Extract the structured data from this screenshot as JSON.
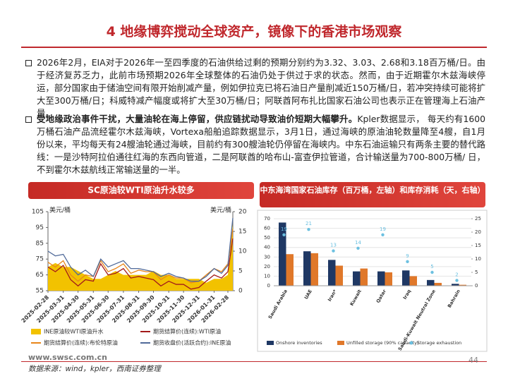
{
  "header": {
    "title": "4 地缘博弈搅动全球资产，镜像下的香港市场观察"
  },
  "bullets": [
    {
      "text": "2026年2月，EIA对于2026年一至四季度的石油供给过剩的预期分别约为3.32、3.03、2.68和3.18百万桶/日。由于经济复苏乏力，此前市场预期2026年全球整体的石油仍处于供过于求的状态。然而，由于近期霍尔木兹海峡停运，部分国家由于储油空间有限开始削减产量，例如伊拉克已将石油日产量削减近150万桶/日，若冲突持续可能将扩大至300万桶/日；科威特减产幅度或将扩大至30万桶/日；阿联酋阿布扎比国家石油公司也表示正在管理海上石油产量。"
    },
    {
      "bold": "受地缘政治事件干扰，大量油轮在海上停留，供应链扰动导致油价短期大幅攀升。",
      "text": "Kpler数据显示，  每天约有1600万桶石油产品流经霍尔木兹海峡，Vortexa船舶追踪数据显示，3月1日，通过海峡的原油油轮数量降至4艘，自1月份以来，平均每天有24艘油轮通过海峡，目前约有300艘油轮仍停留在海峡内。中东石油运输只有两条主要的替代路线：一是沙特阿拉伯通往红海的东西向管道，二是阿联酋的哈布山-富查伊拉管道，合计输送量为700-800万桶/ 日，不到霍尔木兹航线正常输送量的一半。"
    }
  ],
  "chart_data": [
    {
      "type": "line",
      "title": "SC原油较WTI原油升水较多",
      "y_label": "美元/桶",
      "y2_label": "美元/桶",
      "x": [
        "2025-02-28",
        "2025-03-15",
        "2025-03-31",
        "2025-04-15",
        "2025-04-30",
        "2025-05-15",
        "2025-05-31",
        "2025-06-15",
        "2025-06-30",
        "2025-07-15",
        "2025-07-31",
        "2025-08-15",
        "2025-08-31",
        "2025-09-15",
        "2025-09-30",
        "2025-10-15",
        "2025-10-31",
        "2025-11-15",
        "2025-11-30",
        "2025-12-15",
        "2025-12-31",
        "2026-01-15",
        "2026-01-31",
        "2026-02-15",
        "2026-02-28",
        "2026-03-10"
      ],
      "xlim": [
        "2025-02-28",
        "2026-03-10"
      ],
      "xticks": [
        "2025-02-28",
        "2025-03-31",
        "2025-04-30",
        "2025-05-31",
        "2025-06-30",
        "2025-07-31",
        "2025-08-31",
        "2025-09-30",
        "2025-10-31",
        "2025-11-30",
        "2025-12-31",
        "2026-01-31",
        "2026-02-28"
      ],
      "ylim": [
        55,
        105
      ],
      "yticks": [
        55,
        65,
        75,
        85,
        95,
        105
      ],
      "y2lim": [
        0,
        20
      ],
      "y2ticks": [
        0,
        5,
        10,
        15,
        20
      ],
      "series": [
        {
          "name": "INE原油较WTI原油升水",
          "color": "#f2c200",
          "kind": "area",
          "axis": "y2",
          "values": [
            6,
            7,
            6,
            6,
            5,
            4,
            3,
            3,
            4,
            5,
            4,
            4,
            4,
            4,
            5,
            4,
            4,
            3,
            3,
            3,
            3,
            2,
            3,
            3,
            4,
            17
          ]
        },
        {
          "name": "期货结算价(连续):WTI原油",
          "color": "#a31a1a",
          "kind": "line",
          "values": [
            70,
            67,
            71,
            62,
            58,
            62,
            61,
            72,
            65,
            66,
            69,
            63,
            64,
            63,
            62,
            58,
            61,
            59,
            59,
            56,
            57,
            61,
            65,
            63,
            67,
            88
          ]
        },
        {
          "name": "期货结算价(连续):布伦特原油",
          "color": "#e8861a",
          "kind": "line",
          "values": [
            73,
            70,
            74,
            65,
            61,
            65,
            64,
            74,
            67,
            69,
            72,
            66,
            68,
            67,
            67,
            62,
            65,
            63,
            63,
            60,
            61,
            65,
            69,
            67,
            72,
            94
          ]
        },
        {
          "name": "期货收盘价(活跃合约):INE原油",
          "color": "#506a99",
          "kind": "line",
          "values": [
            80,
            77,
            78,
            70,
            65,
            68,
            64,
            75,
            70,
            72,
            74,
            69,
            69,
            68,
            67,
            64,
            66,
            64,
            63,
            61,
            61,
            64,
            69,
            66,
            71,
            101
          ]
        }
      ]
    },
    {
      "type": "bar",
      "title": "中东海湾国家石油库存（百万桶，左轴）和库存消耗（天，右轴）",
      "categories": [
        "Saudi Arabia",
        "UAE",
        "Iran*",
        "Kuwait",
        "Qatar",
        "Iraq",
        "Saudi-Kuwait Neutral Zone",
        "Bahrain"
      ],
      "ylim": [
        0,
        70
      ],
      "yticks": [
        0,
        10,
        20,
        30,
        40,
        50,
        60,
        70
      ],
      "y2lim": [
        0,
        25
      ],
      "y2ticks": [
        0,
        5,
        10,
        15,
        20,
        25
      ],
      "series": [
        {
          "name": "Onshore inventories",
          "color": "#1f3864",
          "kind": "bar",
          "values": [
            66,
            36,
            27,
            15,
            15,
            16,
            6,
            2
          ]
        },
        {
          "name": "Unfilled storage (90% capacity)",
          "color": "#e0782a",
          "kind": "bar",
          "values": [
            33,
            34,
            21,
            18,
            14,
            10,
            3,
            1
          ]
        },
        {
          "name": "Storage exhaustion",
          "color": "#6cc0e0",
          "kind": "dot",
          "axis": "y2",
          "values": [
            19,
            21,
            13,
            14,
            19,
            9,
            5,
            2
          ]
        }
      ]
    }
  ],
  "footer": {
    "url": "www.swsc.com.cn",
    "source": "数据来源：wind，kpler，西南证券整理",
    "page": "44"
  }
}
